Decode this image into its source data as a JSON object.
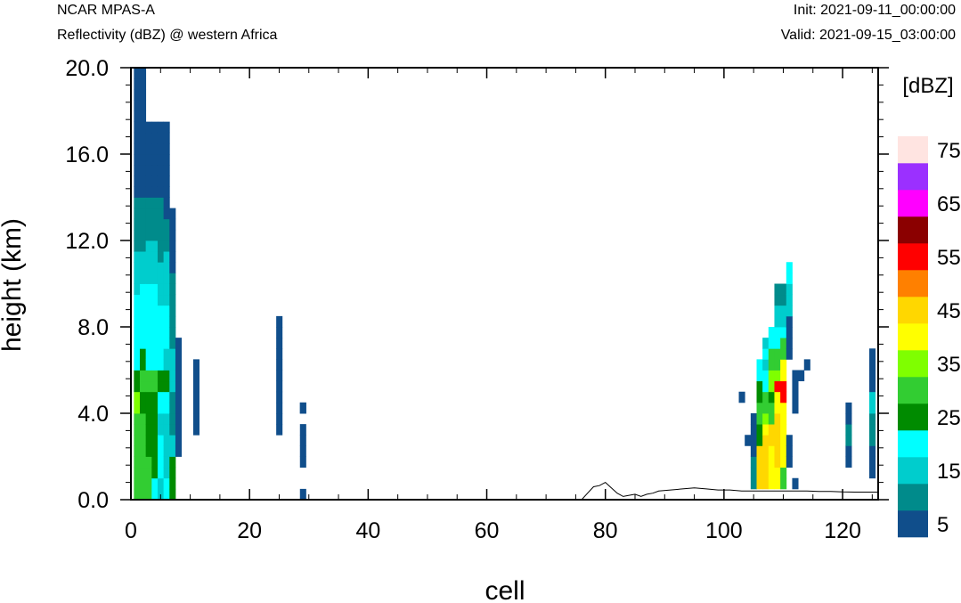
{
  "header": {
    "model": "NCAR MPAS-A",
    "field": "Reflectivity (dBZ) @ western Africa",
    "init": "Init: 2021-09-11_00:00:00",
    "valid": "Valid: 2021-09-15_03:00:00"
  },
  "chart_data": {
    "type": "heatmap",
    "title": "",
    "xlabel": "cell",
    "ylabel": "height (km)",
    "xlim": [
      0,
      126
    ],
    "ylim": [
      0,
      20
    ],
    "x_ticks": [
      0,
      20,
      40,
      60,
      80,
      100,
      120
    ],
    "x_tick_labels": [
      "0",
      "20",
      "40",
      "60",
      "80",
      "100",
      "120"
    ],
    "y_ticks": [
      0,
      4,
      8,
      12,
      16,
      20
    ],
    "y_tick_labels": [
      "0.0",
      "4.0",
      "8.0",
      "12.0",
      "16.0",
      "20.0"
    ],
    "grid": false,
    "cell_height_km": 0.5,
    "colorbar": {
      "title": "[dBZ]",
      "placement": "right",
      "levels": [
        5,
        10,
        15,
        20,
        25,
        30,
        35,
        40,
        45,
        50,
        55,
        60,
        65,
        70,
        75
      ],
      "labels": [
        "5",
        "15",
        "25",
        "35",
        "45",
        "55",
        "65",
        "75"
      ],
      "colors": [
        "#104E8B",
        "#008B8B",
        "#00CDCD",
        "#00FFFF",
        "#008B00",
        "#32CD32",
        "#7FFF00",
        "#FFFF00",
        "#FFD700",
        "#FF8000",
        "#FF0000",
        "#8B0000",
        "#FF00FF",
        "#9B30FF",
        "#FFE4E1"
      ]
    },
    "terrain": [
      [
        0,
        0.0
      ],
      [
        76,
        0.0
      ],
      [
        77,
        0.3
      ],
      [
        78,
        0.6
      ],
      [
        79,
        0.65
      ],
      [
        80,
        0.8
      ],
      [
        81,
        0.55
      ],
      [
        82,
        0.3
      ],
      [
        83,
        0.15
      ],
      [
        84,
        0.2
      ],
      [
        85,
        0.25
      ],
      [
        86,
        0.15
      ],
      [
        87,
        0.25
      ],
      [
        88,
        0.3
      ],
      [
        89,
        0.4
      ],
      [
        91,
        0.45
      ],
      [
        93,
        0.5
      ],
      [
        95,
        0.55
      ],
      [
        97,
        0.5
      ],
      [
        99,
        0.45
      ],
      [
        101,
        0.45
      ],
      [
        103,
        0.4
      ],
      [
        106,
        0.4
      ],
      [
        108,
        0.4
      ],
      [
        110,
        0.4
      ],
      [
        112,
        0.4
      ],
      [
        114,
        0.4
      ],
      [
        116,
        0.38
      ],
      [
        118,
        0.38
      ],
      [
        120,
        0.36
      ],
      [
        122,
        0.35
      ],
      [
        124,
        0.35
      ],
      [
        126,
        0.35
      ]
    ],
    "columns": [
      {
        "x": 1,
        "bottom": 0.0,
        "values": [
          30,
          30,
          30,
          30,
          30,
          30,
          30,
          30,
          35,
          35,
          25,
          25,
          20,
          20,
          20,
          20,
          20,
          20,
          20,
          15,
          15,
          15,
          15,
          10,
          10,
          10,
          10,
          10,
          5,
          5,
          5,
          5,
          5,
          5,
          5,
          5,
          5,
          5,
          5,
          5
        ]
      },
      {
        "x": 2,
        "bottom": 0.0,
        "values": [
          30,
          30,
          30,
          30,
          30,
          30,
          30,
          30,
          25,
          25,
          30,
          30,
          25,
          25,
          20,
          20,
          20,
          20,
          20,
          20,
          15,
          15,
          15,
          10,
          10,
          10,
          10,
          10,
          5,
          5,
          5,
          5,
          5,
          5,
          5,
          5,
          5,
          5,
          5,
          5
        ]
      },
      {
        "x": 3,
        "bottom": 0.0,
        "values": [
          30,
          30,
          30,
          30,
          25,
          25,
          25,
          25,
          25,
          25,
          30,
          30,
          20,
          20,
          20,
          20,
          20,
          20,
          20,
          20,
          15,
          15,
          15,
          15,
          10,
          10,
          10,
          10,
          5,
          5,
          5,
          5,
          5,
          5,
          5
        ]
      },
      {
        "x": 4,
        "bottom": 0.0,
        "values": [
          20,
          20,
          25,
          25,
          25,
          25,
          25,
          25,
          25,
          25,
          30,
          30,
          20,
          20,
          20,
          20,
          20,
          20,
          20,
          20,
          15,
          15,
          15,
          15,
          10,
          10,
          10,
          10,
          5,
          5,
          5,
          5,
          5,
          5,
          5
        ]
      },
      {
        "x": 5,
        "bottom": 0.0,
        "values": [
          15,
          15,
          20,
          20,
          20,
          20,
          15,
          15,
          20,
          20,
          25,
          25,
          20,
          20,
          20,
          20,
          20,
          20,
          15,
          15,
          15,
          15,
          10,
          10,
          10,
          10,
          10,
          10,
          5,
          5,
          5,
          5,
          5,
          5,
          5
        ]
      },
      {
        "x": 6,
        "bottom": 0.0,
        "values": [
          20,
          20,
          15,
          15,
          15,
          15,
          15,
          15,
          20,
          20,
          25,
          25,
          15,
          15,
          20,
          20,
          20,
          20,
          15,
          15,
          15,
          15,
          15,
          10,
          10,
          10,
          5,
          5,
          5,
          5,
          5,
          5,
          5,
          5,
          5
        ]
      },
      {
        "x": 7,
        "bottom": 0.0,
        "values": [
          25,
          25,
          25,
          25,
          15,
          15,
          10,
          10,
          10,
          10,
          15,
          15,
          15,
          15,
          10,
          10,
          10,
          10,
          10,
          10,
          10,
          5,
          5,
          5,
          5,
          5,
          5
        ]
      },
      {
        "x": 8,
        "bottom": 2.0,
        "values": [
          5,
          5,
          5,
          5,
          5,
          5,
          5,
          5,
          5,
          5,
          5
        ]
      },
      {
        "x": 11,
        "bottom": 3.0,
        "values": [
          5,
          5,
          5,
          5,
          5,
          5,
          5
        ]
      },
      {
        "x": 25,
        "bottom": 3.0,
        "values": [
          5,
          5,
          5,
          5,
          5,
          5,
          5,
          5,
          5,
          5,
          5
        ]
      },
      {
        "x": 29,
        "bottom": 1.5,
        "values": [
          5,
          5,
          5,
          5,
          0,
          5
        ]
      },
      {
        "x": 29,
        "bottom": 4.0,
        "values": [
          5
        ]
      },
      {
        "x": 29,
        "bottom": 0.0,
        "values": [
          5
        ]
      },
      {
        "x": 103,
        "bottom": 4.5,
        "values": [
          5
        ]
      },
      {
        "x": 104,
        "bottom": 2.5,
        "values": [
          5
        ]
      },
      {
        "x": 105,
        "bottom": 0.5,
        "values": [
          10,
          10,
          10,
          5,
          5,
          5,
          5
        ]
      },
      {
        "x": 106,
        "bottom": 0.5,
        "values": [
          45,
          45,
          45,
          45,
          25,
          25,
          30,
          30,
          25,
          25,
          20,
          20
        ]
      },
      {
        "x": 107,
        "bottom": 0.5,
        "values": [
          45,
          45,
          45,
          45,
          45,
          40,
          35,
          30,
          30,
          20,
          20,
          15,
          20,
          15
        ]
      },
      {
        "x": 108,
        "bottom": 0.5,
        "values": [
          40,
          40,
          40,
          40,
          45,
          45,
          30,
          30,
          25,
          35,
          35,
          30,
          30,
          20,
          20
        ]
      },
      {
        "x": 109,
        "bottom": 0.5,
        "values": [
          40,
          40,
          45,
          45,
          45,
          45,
          45,
          40,
          40,
          55,
          35,
          30,
          30,
          20,
          20,
          15,
          15,
          10,
          10
        ]
      },
      {
        "x": 110,
        "bottom": 0.5,
        "values": [
          30,
          30,
          40,
          40,
          40,
          40,
          40,
          40,
          55,
          55,
          40,
          40,
          30,
          30,
          20,
          15,
          15,
          10,
          10
        ]
      },
      {
        "x": 111,
        "bottom": 1.5,
        "values": [
          5,
          5,
          5,
          0,
          0,
          0,
          0,
          0,
          0,
          0,
          5,
          5,
          5,
          5,
          15,
          15,
          15,
          20,
          20
        ]
      },
      {
        "x": 112,
        "bottom": 0.5,
        "values": [
          5
        ]
      },
      {
        "x": 112,
        "bottom": 4.0,
        "values": [
          5,
          5,
          5,
          5
        ]
      },
      {
        "x": 113,
        "bottom": 5.5,
        "values": [
          5
        ]
      },
      {
        "x": 114,
        "bottom": 6.0,
        "values": [
          5
        ]
      },
      {
        "x": 121,
        "bottom": 1.5,
        "values": [
          5,
          5,
          10,
          10,
          5,
          5
        ]
      },
      {
        "x": 125,
        "bottom": 1.0,
        "values": [
          5,
          5,
          5,
          10,
          10,
          10,
          15,
          15,
          5,
          5,
          5,
          5
        ]
      }
    ]
  }
}
